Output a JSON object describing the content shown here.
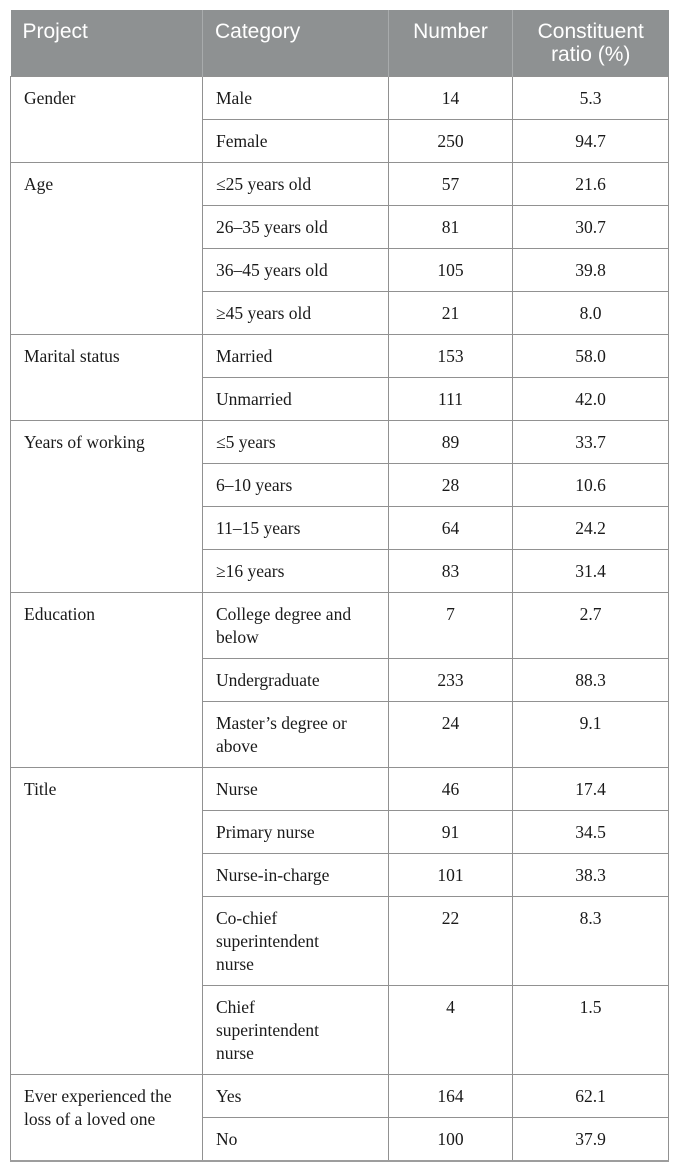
{
  "table": {
    "header": {
      "columns": [
        "Project",
        "Category",
        "Number",
        "Constituent ratio (%)"
      ],
      "bg_color": "#8e9192",
      "text_color": "#ffffff",
      "divider_color": "#a8abac"
    },
    "style": {
      "body_border_color": "#919191",
      "bottom_border_color": "#9d9d9d",
      "body_text_color": "#1a1a1a"
    },
    "groups": [
      {
        "project": "Gender",
        "rows": [
          [
            "Male",
            "14",
            "5.3"
          ],
          [
            "Female",
            "250",
            "94.7"
          ]
        ]
      },
      {
        "project": "Age",
        "rows": [
          [
            "≤25 years old",
            "57",
            "21.6"
          ],
          [
            "26–35 years old",
            "81",
            "30.7"
          ],
          [
            "36–45 years old",
            "105",
            "39.8"
          ],
          [
            "≥45 years old",
            "21",
            "8.0"
          ]
        ]
      },
      {
        "project": "Marital status",
        "rows": [
          [
            "Married",
            "153",
            "58.0"
          ],
          [
            "Unmarried",
            "111",
            "42.0"
          ]
        ]
      },
      {
        "project": "Years of working",
        "rows": [
          [
            "≤5 years",
            "89",
            "33.7"
          ],
          [
            "6–10 years",
            "28",
            "10.6"
          ],
          [
            "11–15 years",
            "64",
            "24.2"
          ],
          [
            "≥16 years",
            "83",
            "31.4"
          ]
        ]
      },
      {
        "project": "Education",
        "rows": [
          [
            "College degree and\nbelow",
            "7",
            "2.7"
          ],
          [
            "Undergraduate",
            "233",
            "88.3"
          ],
          [
            "Master’s degree or\nabove",
            "24",
            "9.1"
          ]
        ]
      },
      {
        "project": "Title",
        "rows": [
          [
            "Nurse",
            "46",
            "17.4"
          ],
          [
            "Primary nurse",
            "91",
            "34.5"
          ],
          [
            "Nurse-in-charge",
            "101",
            "38.3"
          ],
          [
            "Co-chief\nsuperintendent\nnurse",
            "22",
            "8.3"
          ],
          [
            "Chief\nsuperintendent\nnurse",
            "4",
            "1.5"
          ]
        ]
      },
      {
        "project": "Ever experienced the\nloss of a loved one",
        "rows": [
          [
            "Yes",
            "164",
            "62.1"
          ],
          [
            "No",
            "100",
            "37.9"
          ]
        ]
      }
    ]
  }
}
